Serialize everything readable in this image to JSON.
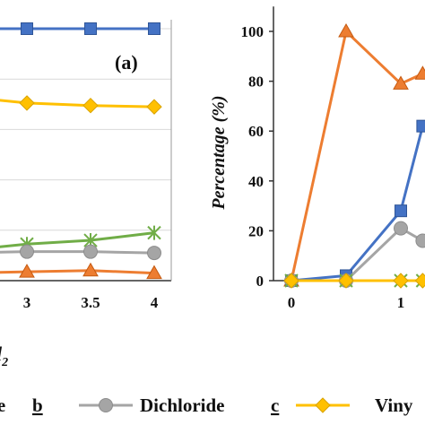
{
  "chart_data": [
    {
      "type": "line",
      "panel_label": "(a)",
      "xlabel_fragment": "l",
      "xlabel_sub": "2",
      "x_ticks": [
        "3",
        "3.5",
        "4"
      ],
      "xlim": [
        2.2,
        4.1
      ],
      "ylim": [
        0,
        100
      ],
      "grid": true,
      "series": [
        {
          "key": "s1",
          "color": "#4472c4",
          "marker": "square",
          "x": [
            2.5,
            3,
            3.5,
            4
          ],
          "y": [
            100,
            100,
            100,
            100
          ]
        },
        {
          "key": "s3",
          "color": "#ffc000",
          "marker": "diamond",
          "x": [
            2.5,
            3,
            3.5,
            4
          ],
          "y": [
            73,
            70.5,
            69.5,
            69
          ]
        },
        {
          "key": "s5",
          "color": "#70ad47",
          "marker": "star",
          "x": [
            2.5,
            3,
            3.5,
            4
          ],
          "y": [
            12,
            14.5,
            16,
            19
          ]
        },
        {
          "key": "s2",
          "color": "#a5a5a5",
          "marker": "circle",
          "x": [
            2.5,
            3,
            3.5,
            4
          ],
          "y": [
            11,
            11.5,
            11.5,
            11
          ]
        },
        {
          "key": "s4",
          "color": "#ed7d31",
          "marker": "triangle",
          "x": [
            2.5,
            3,
            3.5,
            4
          ],
          "y": [
            3,
            3.5,
            4,
            3
          ]
        }
      ]
    },
    {
      "type": "line",
      "ylabel": "Percentage (%)",
      "y_ticks": [
        "0",
        "20",
        "40",
        "60",
        "80",
        "100"
      ],
      "x_ticks": [
        "0",
        "1"
      ],
      "xlim": [
        -0.15,
        1.25
      ],
      "ylim": [
        0,
        110
      ],
      "series": [
        {
          "key": "s4",
          "color": "#ed7d31",
          "marker": "triangle",
          "x": [
            0,
            0.5,
            1,
            1.2
          ],
          "y": [
            0,
            100,
            79,
            83
          ]
        },
        {
          "key": "s1",
          "color": "#4472c4",
          "marker": "square",
          "x": [
            0,
            0.5,
            1,
            1.2
          ],
          "y": [
            0,
            2,
            28,
            62
          ]
        },
        {
          "key": "s2",
          "color": "#a5a5a5",
          "marker": "circle",
          "x": [
            0,
            0.5,
            1,
            1.2
          ],
          "y": [
            0,
            0,
            21,
            16
          ]
        },
        {
          "key": "s5",
          "color": "#70ad47",
          "marker": "star",
          "x": [
            0,
            0.5,
            1,
            1.2
          ],
          "y": [
            0,
            0,
            0,
            0
          ]
        },
        {
          "key": "s3",
          "color": "#ffc000",
          "marker": "diamond",
          "x": [
            0,
            0.5,
            1,
            1.2
          ],
          "y": [
            0,
            0,
            0,
            0
          ]
        }
      ]
    }
  ],
  "legend": {
    "items": [
      {
        "key": "s1",
        "color": "#4472c4",
        "marker": "square",
        "text": "ride",
        "suffix": "b"
      },
      {
        "key": "s2",
        "color": "#a5a5a5",
        "marker": "circle",
        "text": "Dichloride",
        "suffix": "c"
      },
      {
        "key": "s3",
        "color": "#ffc000",
        "marker": "diamond",
        "text": "Viny",
        "suffix": ""
      }
    ]
  }
}
